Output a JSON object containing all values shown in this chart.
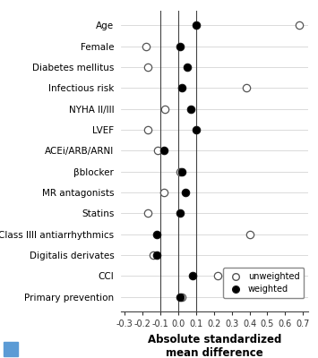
{
  "categories": [
    "Age",
    "Female",
    "Diabetes mellitus",
    "Infectious risk",
    "NYHA II/III",
    "LVEF",
    "ACEi/ARB/ARNI",
    "βblocker",
    "MR antagonists",
    "Statins",
    "Class IIII antiarrhythmics",
    "Digitalis derivates",
    "CCI",
    "Primary prevention"
  ],
  "unweighted": [
    0.68,
    -0.18,
    -0.17,
    0.38,
    -0.075,
    -0.17,
    -0.115,
    0.01,
    -0.08,
    -0.17,
    0.4,
    -0.14,
    0.22,
    0.02
  ],
  "weighted": [
    0.1,
    0.01,
    0.05,
    0.02,
    0.07,
    0.1,
    -0.08,
    0.02,
    0.04,
    0.01,
    -0.12,
    -0.12,
    0.08,
    0.01
  ],
  "unweighted_color": "white",
  "weighted_color": "black",
  "unweighted_edgecolor": "#555555",
  "weighted_edgecolor": "#111111",
  "xlabel_line1": "Absolute standardized",
  "xlabel_line2": "mean difference",
  "xlim": [
    -0.32,
    0.73
  ],
  "xticks": [
    -0.3,
    -0.2,
    -0.1,
    0.0,
    0.1,
    0.2,
    0.3,
    0.4,
    0.5,
    0.6,
    0.7
  ],
  "xtick_labels": [
    "-0.3",
    "-0.2",
    "-0.1",
    "0.0",
    "0.1",
    "0.2",
    "0.3",
    "0.4",
    "0.5",
    "0.6",
    "0.7"
  ],
  "vlines": [
    -0.1,
    0.0,
    0.1
  ],
  "vline_color": "#444444",
  "hline_color": "#cccccc",
  "marker_size": 6,
  "background_color": "#ffffff",
  "legend_unweighted": "unweighted",
  "legend_weighted": "weighted",
  "blue_square_color": "#5b9bd5",
  "tick_fontsize": 7,
  "label_fontsize": 8.5,
  "category_fontsize": 7.5
}
